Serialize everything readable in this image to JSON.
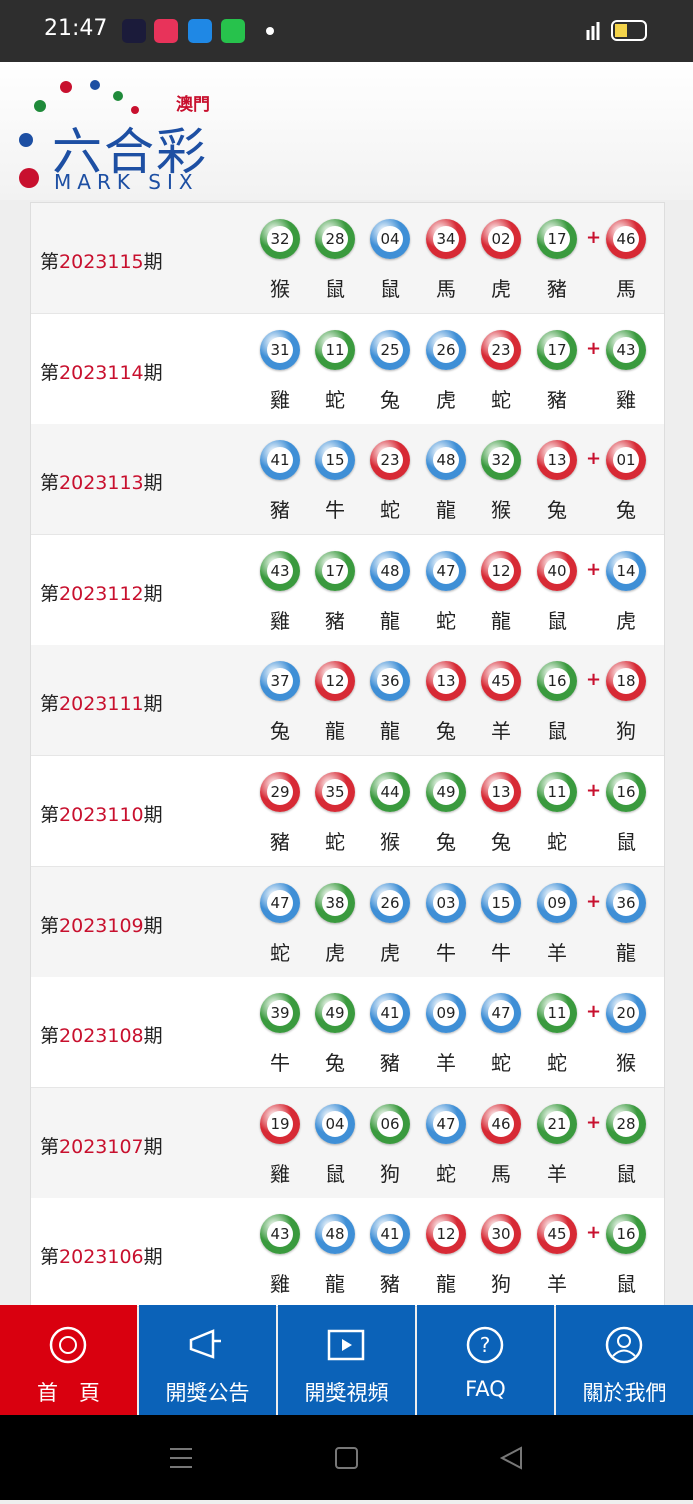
{
  "status_bar": {
    "time": "21:47"
  },
  "header": {
    "region": "澳門",
    "logo": "六合彩",
    "logo_en": "MARK SIX"
  },
  "labels": {
    "prefix": "第",
    "suffix": "期",
    "plus": "+"
  },
  "draws": [
    {
      "issue": "2023115",
      "balls": [
        {
          "number": "32",
          "color": "green",
          "zodiac": "猴"
        },
        {
          "number": "28",
          "color": "green",
          "zodiac": "鼠"
        },
        {
          "number": "04",
          "color": "blue",
          "zodiac": "鼠"
        },
        {
          "number": "34",
          "color": "red",
          "zodiac": "馬"
        },
        {
          "number": "02",
          "color": "red",
          "zodiac": "虎"
        },
        {
          "number": "17",
          "color": "green",
          "zodiac": "豬"
        }
      ],
      "special": {
        "number": "46",
        "color": "red",
        "zodiac": "馬"
      }
    },
    {
      "issue": "2023114",
      "balls": [
        {
          "number": "31",
          "color": "blue",
          "zodiac": "雞"
        },
        {
          "number": "11",
          "color": "green",
          "zodiac": "蛇"
        },
        {
          "number": "25",
          "color": "blue",
          "zodiac": "兔"
        },
        {
          "number": "26",
          "color": "blue",
          "zodiac": "虎"
        },
        {
          "number": "23",
          "color": "red",
          "zodiac": "蛇"
        },
        {
          "number": "17",
          "color": "green",
          "zodiac": "豬"
        }
      ],
      "special": {
        "number": "43",
        "color": "green",
        "zodiac": "雞"
      }
    },
    {
      "issue": "2023113",
      "balls": [
        {
          "number": "41",
          "color": "blue",
          "zodiac": "豬"
        },
        {
          "number": "15",
          "color": "blue",
          "zodiac": "牛"
        },
        {
          "number": "23",
          "color": "red",
          "zodiac": "蛇"
        },
        {
          "number": "48",
          "color": "blue",
          "zodiac": "龍"
        },
        {
          "number": "32",
          "color": "green",
          "zodiac": "猴"
        },
        {
          "number": "13",
          "color": "red",
          "zodiac": "兔"
        }
      ],
      "special": {
        "number": "01",
        "color": "red",
        "zodiac": "兔"
      }
    },
    {
      "issue": "2023112",
      "balls": [
        {
          "number": "43",
          "color": "green",
          "zodiac": "雞"
        },
        {
          "number": "17",
          "color": "green",
          "zodiac": "豬"
        },
        {
          "number": "48",
          "color": "blue",
          "zodiac": "龍"
        },
        {
          "number": "47",
          "color": "blue",
          "zodiac": "蛇"
        },
        {
          "number": "12",
          "color": "red",
          "zodiac": "龍"
        },
        {
          "number": "40",
          "color": "red",
          "zodiac": "鼠"
        }
      ],
      "special": {
        "number": "14",
        "color": "blue",
        "zodiac": "虎"
      }
    },
    {
      "issue": "2023111",
      "balls": [
        {
          "number": "37",
          "color": "blue",
          "zodiac": "兔"
        },
        {
          "number": "12",
          "color": "red",
          "zodiac": "龍"
        },
        {
          "number": "36",
          "color": "blue",
          "zodiac": "龍"
        },
        {
          "number": "13",
          "color": "red",
          "zodiac": "兔"
        },
        {
          "number": "45",
          "color": "red",
          "zodiac": "羊"
        },
        {
          "number": "16",
          "color": "green",
          "zodiac": "鼠"
        }
      ],
      "special": {
        "number": "18",
        "color": "red",
        "zodiac": "狗"
      }
    },
    {
      "issue": "2023110",
      "balls": [
        {
          "number": "29",
          "color": "red",
          "zodiac": "豬"
        },
        {
          "number": "35",
          "color": "red",
          "zodiac": "蛇"
        },
        {
          "number": "44",
          "color": "green",
          "zodiac": "猴"
        },
        {
          "number": "49",
          "color": "green",
          "zodiac": "兔"
        },
        {
          "number": "13",
          "color": "red",
          "zodiac": "兔"
        },
        {
          "number": "11",
          "color": "green",
          "zodiac": "蛇"
        }
      ],
      "special": {
        "number": "16",
        "color": "green",
        "zodiac": "鼠"
      }
    },
    {
      "issue": "2023109",
      "balls": [
        {
          "number": "47",
          "color": "blue",
          "zodiac": "蛇"
        },
        {
          "number": "38",
          "color": "green",
          "zodiac": "虎"
        },
        {
          "number": "26",
          "color": "blue",
          "zodiac": "虎"
        },
        {
          "number": "03",
          "color": "blue",
          "zodiac": "牛"
        },
        {
          "number": "15",
          "color": "blue",
          "zodiac": "牛"
        },
        {
          "number": "09",
          "color": "blue",
          "zodiac": "羊"
        }
      ],
      "special": {
        "number": "36",
        "color": "blue",
        "zodiac": "龍"
      }
    },
    {
      "issue": "2023108",
      "balls": [
        {
          "number": "39",
          "color": "green",
          "zodiac": "牛"
        },
        {
          "number": "49",
          "color": "green",
          "zodiac": "兔"
        },
        {
          "number": "41",
          "color": "blue",
          "zodiac": "豬"
        },
        {
          "number": "09",
          "color": "blue",
          "zodiac": "羊"
        },
        {
          "number": "47",
          "color": "blue",
          "zodiac": "蛇"
        },
        {
          "number": "11",
          "color": "green",
          "zodiac": "蛇"
        }
      ],
      "special": {
        "number": "20",
        "color": "blue",
        "zodiac": "猴"
      }
    },
    {
      "issue": "2023107",
      "balls": [
        {
          "number": "19",
          "color": "red",
          "zodiac": "雞"
        },
        {
          "number": "04",
          "color": "blue",
          "zodiac": "鼠"
        },
        {
          "number": "06",
          "color": "green",
          "zodiac": "狗"
        },
        {
          "number": "47",
          "color": "blue",
          "zodiac": "蛇"
        },
        {
          "number": "46",
          "color": "red",
          "zodiac": "馬"
        },
        {
          "number": "21",
          "color": "green",
          "zodiac": "羊"
        }
      ],
      "special": {
        "number": "28",
        "color": "green",
        "zodiac": "鼠"
      }
    },
    {
      "issue": "2023106",
      "balls": [
        {
          "number": "43",
          "color": "green",
          "zodiac": "雞"
        },
        {
          "number": "48",
          "color": "blue",
          "zodiac": "龍"
        },
        {
          "number": "41",
          "color": "blue",
          "zodiac": "豬"
        },
        {
          "number": "12",
          "color": "red",
          "zodiac": "龍"
        },
        {
          "number": "30",
          "color": "red",
          "zodiac": "狗"
        },
        {
          "number": "45",
          "color": "red",
          "zodiac": "羊"
        }
      ],
      "special": {
        "number": "16",
        "color": "green",
        "zodiac": "鼠"
      }
    }
  ],
  "nav": [
    {
      "label": "首　頁"
    },
    {
      "label": "開獎公告"
    },
    {
      "label": "開獎視頻"
    },
    {
      "label": "FAQ"
    },
    {
      "label": "關於我們"
    }
  ]
}
